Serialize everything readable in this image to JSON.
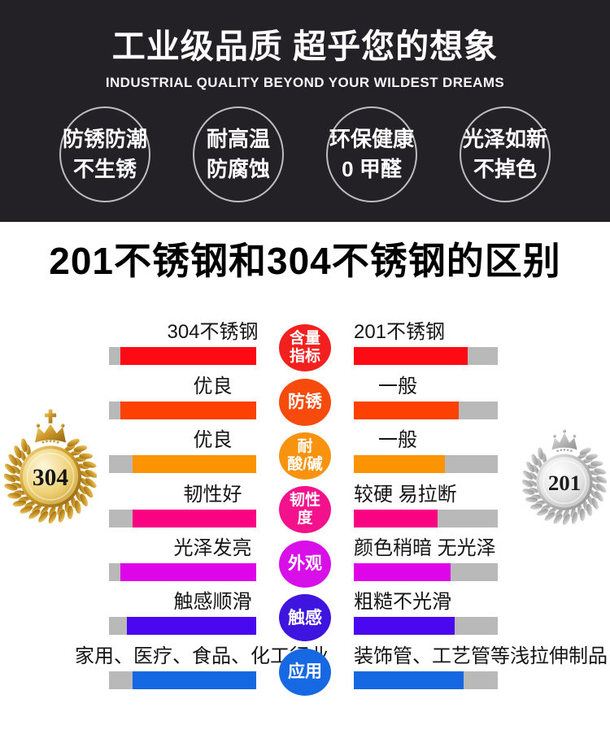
{
  "banner": {
    "bg_color": "#232126",
    "title": "工业级品质 超乎您的想象",
    "subtitle": "INDUSTRIAL QUALITY BEYOND YOUR WILDEST DREAMS",
    "features": [
      {
        "line1": "防锈防潮",
        "line2": "不生锈"
      },
      {
        "line1": "耐高温",
        "line2": "防腐蚀"
      },
      {
        "line1": "环保健康",
        "line2": "0 甲醛"
      },
      {
        "line1": "光泽如新",
        "line2": "不掉色"
      }
    ]
  },
  "section": {
    "title": "201不锈钢和304不锈钢的区别",
    "left_medal": {
      "label": "304",
      "type": "gold"
    },
    "right_medal": {
      "label": "201",
      "type": "silver"
    },
    "bar_track_color": "#b9b9b9",
    "rows": [
      {
        "metric": "含量指标",
        "metric_lines": [
          "含量",
          "指标"
        ],
        "left_label": "304不锈钢",
        "right_label": "201不锈钢",
        "bar_color": "#fe0a14",
        "circle_color": "#f2201f",
        "left_fill": 92,
        "right_fill": 79
      },
      {
        "metric": "防锈",
        "metric_lines": [
          "防锈"
        ],
        "left_label": "优良",
        "right_label": "一般",
        "bar_color": "#fd4103",
        "circle_color": "#f64b0c",
        "left_fill": 92,
        "right_fill": 73
      },
      {
        "metric": "耐酸/碱",
        "metric_lines": [
          "耐",
          "酸/碱"
        ],
        "left_label": "优良",
        "right_label": "一般",
        "bar_color": "#fb9303",
        "circle_color": "#f8930f",
        "left_fill": 84,
        "right_fill": 63
      },
      {
        "metric": "韧性度",
        "metric_lines": [
          "韧性",
          "度"
        ],
        "left_label": "韧性好",
        "right_label": "较硬 易拉断",
        "bar_color": "#f90383",
        "circle_color": "#f3128b",
        "left_fill": 84,
        "right_fill": 58
      },
      {
        "metric": "外观",
        "metric_lines": [
          "外观"
        ],
        "left_label": "光泽发亮",
        "right_label": "颜色稍暗 无光泽",
        "bar_color": "#de06e8",
        "circle_color": "#d80fe8",
        "left_fill": 92,
        "right_fill": 67
      },
      {
        "metric": "触感",
        "metric_lines": [
          "触感"
        ],
        "left_label": "触感顺滑",
        "right_label": "粗糙不光滑",
        "bar_color": "#4a08f0",
        "circle_color": "#3e14df",
        "left_fill": 88,
        "right_fill": 70
      },
      {
        "metric": "应用",
        "metric_lines": [
          "应用"
        ],
        "left_label": "家用、医疗、食品、化工行业",
        "right_label": "装饰管、工艺管等浅拉伸制品",
        "bar_color": "#1568e2",
        "circle_color": "#1769e3",
        "left_fill": 84,
        "right_fill": 76
      }
    ]
  },
  "chart_data": {
    "type": "bar",
    "title": "201不锈钢和304不锈钢的区别",
    "categories": [
      "含量指标",
      "防锈",
      "耐酸/碱",
      "韧性度",
      "外观",
      "触感",
      "应用"
    ],
    "series": [
      {
        "name": "304不锈钢",
        "values": [
          92,
          92,
          84,
          84,
          92,
          88,
          84
        ],
        "labels": [
          "304不锈钢",
          "优良",
          "优良",
          "韧性好",
          "光泽发亮",
          "触感顺滑",
          "家用、医疗、食品、化工行业"
        ]
      },
      {
        "name": "201不锈钢",
        "values": [
          79,
          73,
          63,
          58,
          67,
          70,
          76
        ],
        "labels": [
          "201不锈钢",
          "一般",
          "一般",
          "较硬 易拉断",
          "颜色稍暗 无光泽",
          "粗糙不光滑",
          "装饰管、工艺管等浅拉伸制品"
        ]
      }
    ],
    "value_unit": "estimated fill percent of bar",
    "ylim": [
      0,
      100
    ],
    "legend_position": "bars mirrored from center category badges",
    "row_colors": [
      "#fe0a14",
      "#fd4103",
      "#fb9303",
      "#f90383",
      "#de06e8",
      "#4a08f0",
      "#1568e2"
    ]
  }
}
